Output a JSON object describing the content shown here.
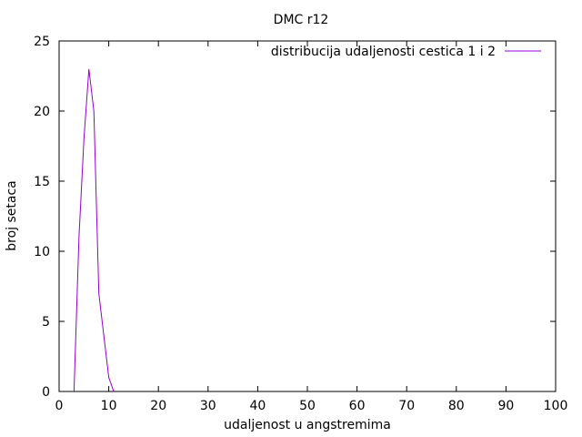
{
  "chart_data": {
    "type": "line",
    "title": "DMC r12",
    "xlabel": "udaljenost u angstremima",
    "ylabel": "broj setaca",
    "xlim": [
      0,
      100
    ],
    "ylim": [
      0,
      25
    ],
    "xticks": [
      0,
      10,
      20,
      30,
      40,
      50,
      60,
      70,
      80,
      90,
      100
    ],
    "yticks": [
      0,
      5,
      10,
      15,
      20,
      25
    ],
    "grid": false,
    "legend_position": "top-right",
    "series": [
      {
        "name": "distribucija udaljenosti cestica 1 i 2",
        "color": "#9400d3",
        "x": [
          3,
          4,
          5,
          6,
          7,
          8,
          9,
          10,
          11
        ],
        "y": [
          0,
          11,
          18,
          23,
          20,
          7,
          4,
          1,
          0
        ]
      }
    ]
  }
}
